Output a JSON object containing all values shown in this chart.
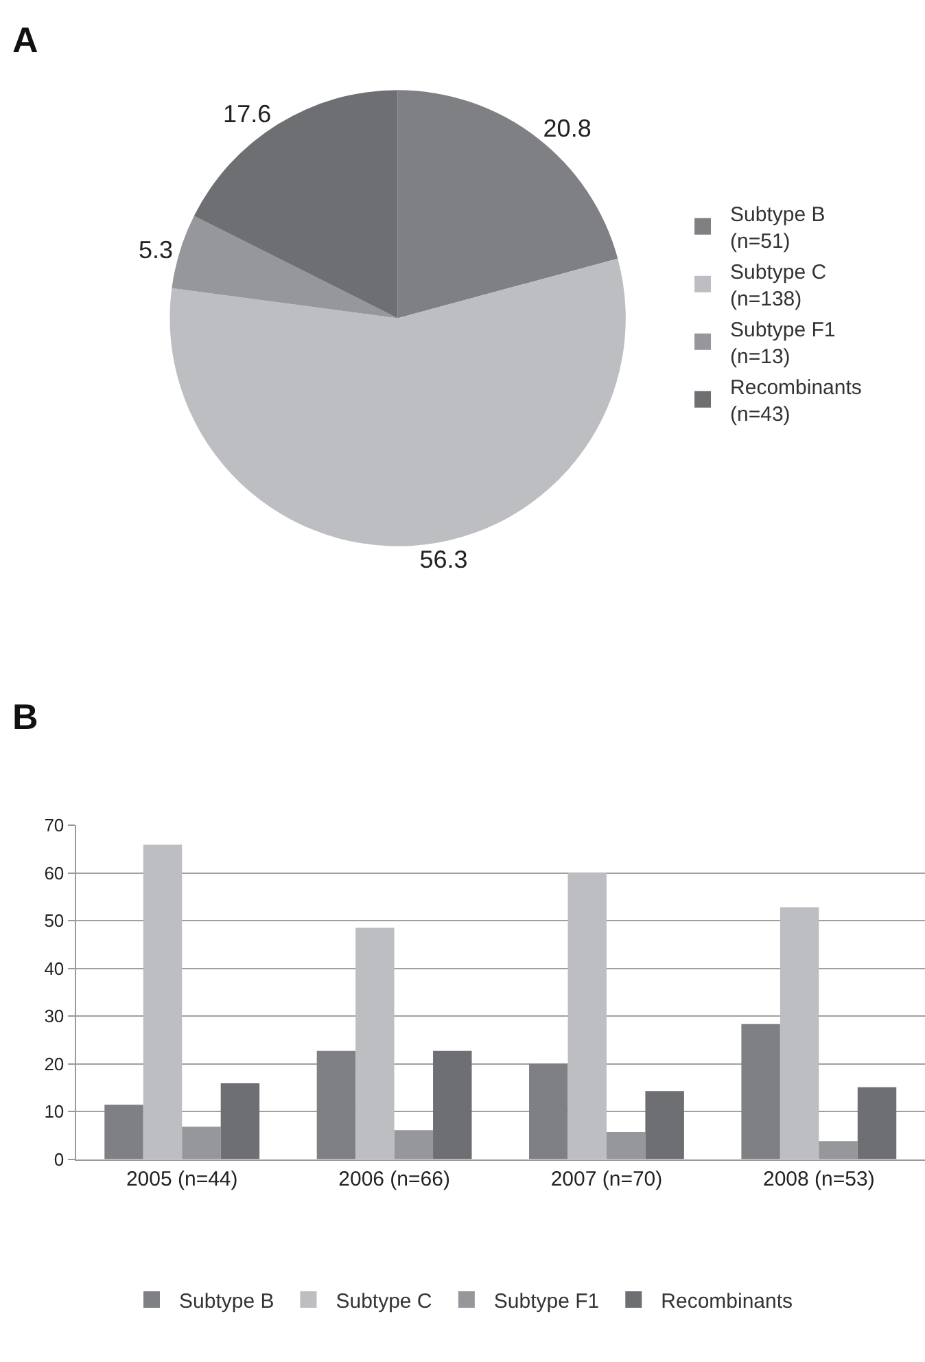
{
  "chart_data": [
    {
      "type": "pie",
      "annotations": [
        "A"
      ],
      "categories": [
        "Subtype B\n(n=51)",
        "Subtype C\n(n=138)",
        "Subtype F1\n(n=13)",
        "Recombinants\n(n=43)"
      ],
      "values": [
        20.8,
        56.3,
        5.3,
        17.6
      ],
      "colors": [
        "#7f8084",
        "#bdbec2",
        "#96979b",
        "#6e6f73"
      ],
      "data_labels": true,
      "legend": "right"
    },
    {
      "type": "bar",
      "annotations": [
        "B"
      ],
      "categories": [
        "2005 (n=44)",
        "2006 (n=66)",
        "2007 (n=70)",
        "2008 (n=53)"
      ],
      "series": [
        {
          "name": "Subtype B",
          "color": "#7f8084",
          "values": [
            11.4,
            22.7,
            20.0,
            28.3
          ]
        },
        {
          "name": "Subtype C",
          "color": "#bdbec2",
          "values": [
            65.9,
            48.5,
            60.0,
            52.8
          ]
        },
        {
          "name": "Subtype F1",
          "color": "#96979b",
          "values": [
            6.8,
            6.1,
            5.7,
            3.8
          ]
        },
        {
          "name": "Recombinants",
          "color": "#6e6f73",
          "values": [
            15.9,
            22.7,
            14.3,
            15.1
          ]
        }
      ],
      "ylim": [
        0,
        70
      ],
      "yticks": [
        0,
        10,
        20,
        30,
        40,
        50,
        60,
        70
      ],
      "grid": "y",
      "legend": "bottom"
    }
  ]
}
